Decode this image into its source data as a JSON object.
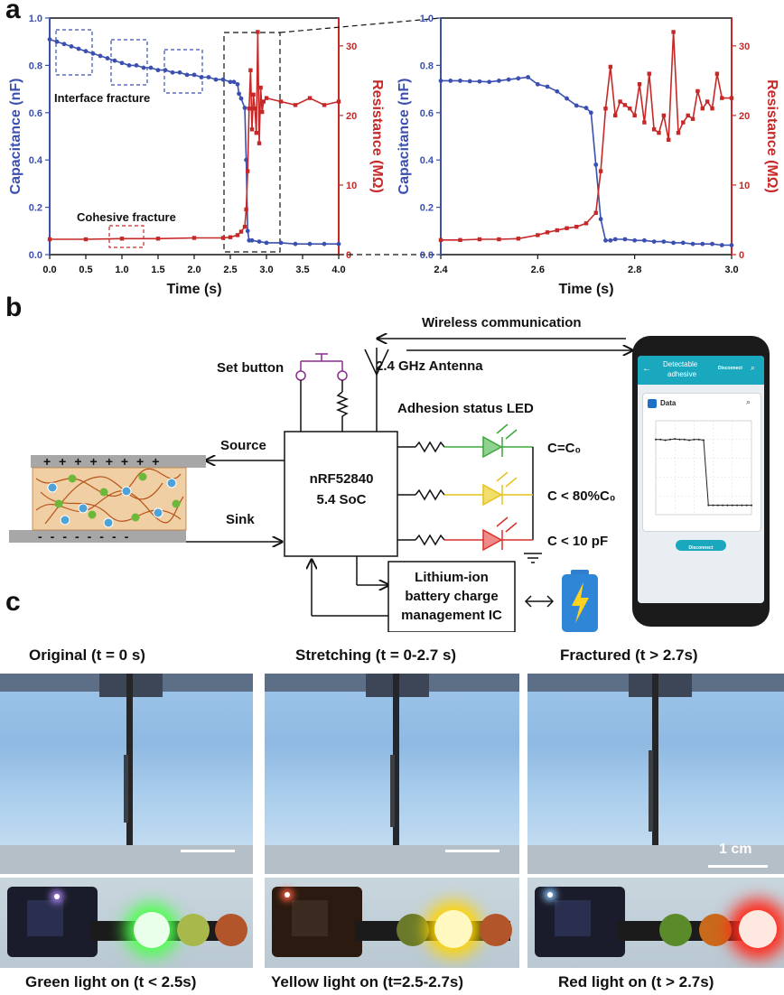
{
  "panels": {
    "a": "a",
    "b": "b",
    "c": "c"
  },
  "chart_data": [
    {
      "type": "line",
      "xlabel": "Time (s)",
      "ylabel_left": "Capacitance (nF)",
      "ylabel_right": "Resistance (MΩ)",
      "xlim": [
        0.0,
        4.0
      ],
      "ylim_left": [
        0.0,
        1.0
      ],
      "ylim_right": [
        0,
        34
      ],
      "xticks": [
        "0.0",
        "0.5",
        "1.0",
        "1.5",
        "2.0",
        "2.5",
        "3.0",
        "3.5",
        "4.0"
      ],
      "yticks_left": [
        "0.0",
        "0.2",
        "0.4",
        "0.6",
        "0.8",
        "1.0"
      ],
      "yticks_right": [
        "0",
        "10",
        "20",
        "30"
      ],
      "annotations": [
        "Interface fracture",
        "Cohesive fracture"
      ],
      "series": [
        {
          "axis": "left",
          "color": "#3a4fb0",
          "x": [
            0.0,
            0.1,
            0.2,
            0.3,
            0.4,
            0.5,
            0.6,
            0.7,
            0.8,
            0.9,
            1.0,
            1.1,
            1.2,
            1.3,
            1.4,
            1.5,
            1.6,
            1.7,
            1.8,
            1.9,
            2.0,
            2.1,
            2.2,
            2.3,
            2.4,
            2.5,
            2.55,
            2.6,
            2.62,
            2.65,
            2.7,
            2.72,
            2.74,
            2.76,
            2.8,
            2.9,
            3.0,
            3.2,
            3.4,
            3.6,
            3.8,
            4.0
          ],
          "y": [
            0.91,
            0.9,
            0.89,
            0.88,
            0.87,
            0.86,
            0.85,
            0.84,
            0.83,
            0.82,
            0.81,
            0.8,
            0.8,
            0.79,
            0.79,
            0.78,
            0.78,
            0.77,
            0.77,
            0.76,
            0.76,
            0.75,
            0.75,
            0.74,
            0.74,
            0.73,
            0.73,
            0.72,
            0.68,
            0.66,
            0.62,
            0.4,
            0.1,
            0.06,
            0.06,
            0.055,
            0.05,
            0.05,
            0.045,
            0.045,
            0.045,
            0.045
          ]
        },
        {
          "axis": "right",
          "color": "#c62828",
          "x": [
            0.0,
            0.5,
            1.0,
            1.5,
            2.0,
            2.4,
            2.5,
            2.6,
            2.65,
            2.7,
            2.72,
            2.74,
            2.76,
            2.78,
            2.8,
            2.82,
            2.84,
            2.86,
            2.88,
            2.9,
            2.92,
            2.94,
            2.96,
            3.0,
            3.2,
            3.4,
            3.6,
            3.8,
            4.0
          ],
          "y": [
            2.2,
            2.2,
            2.3,
            2.3,
            2.4,
            2.4,
            2.5,
            2.8,
            3.3,
            4.0,
            6.5,
            12.0,
            21.0,
            26.5,
            18.0,
            23.0,
            21.0,
            17.5,
            32.0,
            16.0,
            24.0,
            20.5,
            22.0,
            22.5,
            22.0,
            21.5,
            22.5,
            21.5,
            22.0
          ]
        }
      ]
    },
    {
      "type": "line",
      "xlabel": "Time (s)",
      "ylabel_left": "Capacitance (nF)",
      "ylabel_right": "Resistance (MΩ)",
      "xlim": [
        2.4,
        3.0
      ],
      "ylim_left": [
        0.0,
        1.0
      ],
      "ylim_right": [
        0,
        34
      ],
      "xticks": [
        "2.4",
        "2.6",
        "2.8",
        "3.0"
      ],
      "yticks_left": [
        "0.0",
        "0.2",
        "0.4",
        "0.6",
        "0.8",
        "1.0"
      ],
      "yticks_right": [
        "0",
        "10",
        "20",
        "30"
      ],
      "series": [
        {
          "axis": "left",
          "color": "#3a4fb0",
          "x": [
            2.4,
            2.42,
            2.44,
            2.46,
            2.48,
            2.5,
            2.52,
            2.54,
            2.56,
            2.58,
            2.6,
            2.62,
            2.64,
            2.66,
            2.68,
            2.7,
            2.71,
            2.72,
            2.73,
            2.74,
            2.75,
            2.76,
            2.78,
            2.8,
            2.82,
            2.84,
            2.86,
            2.88,
            2.9,
            2.92,
            2.94,
            2.96,
            2.98,
            3.0
          ],
          "y": [
            0.735,
            0.735,
            0.735,
            0.733,
            0.732,
            0.73,
            0.735,
            0.74,
            0.745,
            0.75,
            0.72,
            0.71,
            0.69,
            0.66,
            0.63,
            0.62,
            0.6,
            0.38,
            0.15,
            0.06,
            0.06,
            0.065,
            0.065,
            0.06,
            0.06,
            0.055,
            0.055,
            0.05,
            0.05,
            0.045,
            0.045,
            0.045,
            0.04,
            0.04
          ]
        },
        {
          "axis": "right",
          "color": "#c62828",
          "x": [
            2.4,
            2.44,
            2.48,
            2.52,
            2.56,
            2.6,
            2.62,
            2.64,
            2.66,
            2.68,
            2.7,
            2.72,
            2.73,
            2.74,
            2.75,
            2.76,
            2.77,
            2.78,
            2.79,
            2.8,
            2.81,
            2.82,
            2.83,
            2.84,
            2.85,
            2.86,
            2.87,
            2.88,
            2.89,
            2.9,
            2.91,
            2.92,
            2.93,
            2.94,
            2.95,
            2.96,
            2.97,
            2.98,
            3.0
          ],
          "y": [
            2.1,
            2.1,
            2.2,
            2.2,
            2.3,
            2.8,
            3.2,
            3.5,
            3.8,
            4.0,
            4.5,
            6.0,
            12.0,
            21.0,
            27.0,
            20.0,
            22.0,
            21.5,
            21.0,
            20.0,
            24.5,
            19.0,
            26.0,
            18.0,
            17.5,
            20.0,
            16.5,
            32.0,
            17.5,
            19.0,
            20.0,
            19.5,
            23.5,
            21.0,
            22.0,
            21.0,
            26.0,
            22.5,
            22.5
          ]
        }
      ]
    }
  ],
  "circuit": {
    "wireless": "Wireless communication",
    "antenna": "2.4 GHz Antenna",
    "set_button": "Set button",
    "led_title": "Adhesion status LED",
    "chip_line1": "nRF52840",
    "chip_line2": "5.4 SoC",
    "source": "Source",
    "sink": "Sink",
    "c_green": "C=C₀",
    "c_yellow": "C < 80%C₀",
    "c_red": "C < 10 pF",
    "battery_line1": "Lithium-ion",
    "battery_line2": "battery charge",
    "battery_line3": "management IC",
    "colors": {
      "green": "#3aa83a",
      "yellow": "#e7c21c",
      "red": "#d9302c",
      "purple": "#8a2b8f"
    }
  },
  "phone": {
    "title_line1": "Detectable",
    "title_line2": "adhesive",
    "disconnect_top": "Disconnect",
    "card_title": "Data",
    "disconnect_button": "Disconnect",
    "mini_plot": {
      "x": [
        0,
        5,
        10,
        15,
        20,
        25,
        30,
        35,
        40,
        45,
        50,
        55,
        60,
        65,
        70,
        75,
        80,
        85,
        90,
        95,
        100
      ],
      "y": [
        240,
        240,
        238,
        240,
        242,
        240,
        240,
        238,
        240,
        240,
        238,
        30,
        30,
        30,
        30,
        30,
        30,
        30,
        30,
        30,
        30
      ]
    }
  },
  "photos": {
    "titles": [
      "Original (t = 0 s)",
      "Stretching (t = 0-2.7 s)",
      "Fractured (t > 2.7s)"
    ],
    "scale_bar": "1 cm",
    "captions": [
      "Green light on (t < 2.5s)",
      "Yellow light on (t=2.5-2.7s)",
      "Red light on (t > 2.7s)"
    ]
  }
}
